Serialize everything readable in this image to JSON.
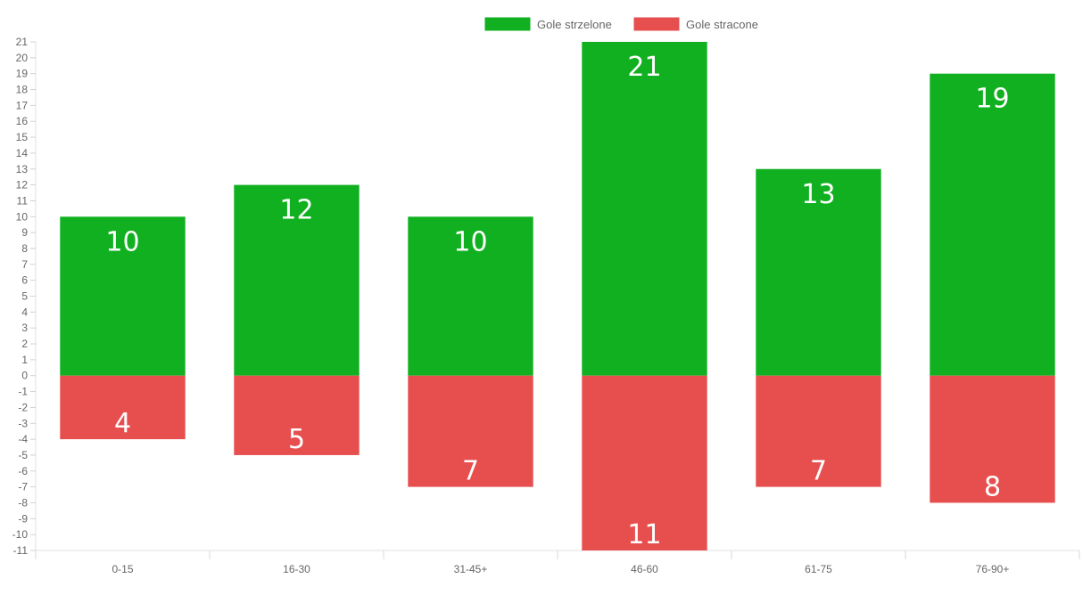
{
  "chart_data": {
    "type": "bar",
    "categories": [
      "0-15",
      "16-30",
      "31-45+",
      "46-60",
      "61-75",
      "76-90+"
    ],
    "series": [
      {
        "name": "Gole strzelone",
        "values": [
          10,
          12,
          10,
          21,
          13,
          19
        ],
        "color": "#11b021",
        "labels": [
          "10",
          "12",
          "10",
          "21",
          "13",
          "19"
        ]
      },
      {
        "name": "Gole stracone",
        "values": [
          -4,
          -5,
          -7,
          -11,
          -7,
          -8
        ],
        "color": "#e74f4f",
        "labels": [
          "4",
          "5",
          "7",
          "11",
          "7",
          "8"
        ]
      }
    ],
    "ylim": [
      -11,
      21
    ],
    "ytick_step": 1,
    "grid": false,
    "legend_position": "top-center",
    "stacked": true
  }
}
